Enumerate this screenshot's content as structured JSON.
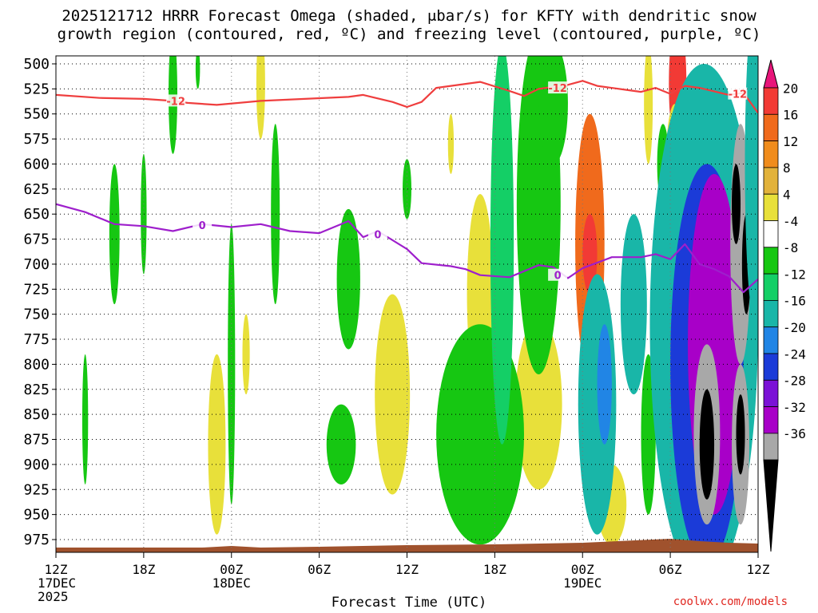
{
  "title_line1": "2025121712 HRRR Forecast Omega (shaded, μbar/s) for KFTY with dendritic snow",
  "title_line2": "growth region (contoured, red, ºC) and freezing level (contoured, purple, ºC)",
  "credit": "coolwx.com/models",
  "chart_data": {
    "type": "heatmap",
    "title": "2025121712 HRRR Forecast Omega (shaded, μbar/s) for KFTY with dendritic snow growth region (contoured, red, ºC) and freezing level (contoured, purple, ºC)",
    "xlabel": "Forecast Time (UTC)",
    "ylabel": "",
    "x_range_hours": [
      0,
      48
    ],
    "y_range_mb": [
      500,
      990
    ],
    "y_ticks": [
      "500",
      "525",
      "550",
      "575",
      "600",
      "625",
      "650",
      "675",
      "700",
      "725",
      "750",
      "775",
      "800",
      "825",
      "850",
      "875",
      "900",
      "925",
      "950",
      "975"
    ],
    "x_ticks": [
      {
        "h": 0,
        "label": "12Z",
        "sub": [
          "17DEC",
          "2025"
        ]
      },
      {
        "h": 6,
        "label": "18Z",
        "sub": []
      },
      {
        "h": 12,
        "label": "00Z",
        "sub": [
          "18DEC"
        ]
      },
      {
        "h": 18,
        "label": "06Z",
        "sub": []
      },
      {
        "h": 24,
        "label": "12Z",
        "sub": []
      },
      {
        "h": 30,
        "label": "18Z",
        "sub": []
      },
      {
        "h": 36,
        "label": "00Z",
        "sub": [
          "19DEC"
        ]
      },
      {
        "h": 42,
        "label": "06Z",
        "sub": []
      },
      {
        "h": 48,
        "label": "12Z",
        "sub": []
      }
    ],
    "colorbar": {
      "labels": [
        "20",
        "16",
        "12",
        "8",
        "4",
        "-4",
        "-8",
        "-12",
        "-16",
        "-20",
        "-24",
        "-28",
        "-32",
        "-36"
      ],
      "colors": [
        "#e8157a",
        "#f23a35",
        "#f06a1c",
        "#f08c1c",
        "#e2b23b",
        "#e8e03a",
        "#ffffff",
        "#16c712",
        "#14cf66",
        "#19b6a8",
        "#2185e5",
        "#1b3bd8",
        "#7b12d6",
        "#a800c8",
        "#a8a8a8",
        "#000000"
      ]
    },
    "omega_cells": [
      {
        "t": 8.0,
        "p": 530,
        "dt": 0.3,
        "dp": 60,
        "v": -6
      },
      {
        "t": 9.7,
        "p": 505,
        "dt": 0.15,
        "dp": 20,
        "v": -6
      },
      {
        "t": 4.0,
        "p": 670,
        "dt": 0.35,
        "dp": 70,
        "v": -6
      },
      {
        "t": 6.0,
        "p": 650,
        "dt": 0.2,
        "dp": 60,
        "v": -6
      },
      {
        "t": 12.0,
        "p": 800,
        "dt": 0.25,
        "dp": 140,
        "v": -6
      },
      {
        "t": 15.0,
        "p": 650,
        "dt": 0.3,
        "dp": 90,
        "v": -6
      },
      {
        "t": 2.0,
        "p": 855,
        "dt": 0.2,
        "dp": 65,
        "v": -6
      },
      {
        "t": 20.0,
        "p": 715,
        "dt": 0.8,
        "dp": 70,
        "v": -6
      },
      {
        "t": 19.5,
        "p": 880,
        "dt": 1.0,
        "dp": 40,
        "v": -6
      },
      {
        "t": 24.0,
        "p": 625,
        "dt": 0.3,
        "dp": 30,
        "v": -6
      },
      {
        "t": 14.0,
        "p": 520,
        "dt": 0.3,
        "dp": 55,
        "v": 5
      },
      {
        "t": 11.0,
        "p": 880,
        "dt": 0.6,
        "dp": 90,
        "v": 5
      },
      {
        "t": 13.0,
        "p": 790,
        "dt": 0.25,
        "dp": 40,
        "v": 5
      },
      {
        "t": 23.0,
        "p": 830,
        "dt": 1.2,
        "dp": 100,
        "v": 6
      },
      {
        "t": 29.0,
        "p": 730,
        "dt": 0.9,
        "dp": 100,
        "v": 5
      },
      {
        "t": 27.0,
        "p": 580,
        "dt": 0.2,
        "dp": 30,
        "v": 5
      },
      {
        "t": 33.0,
        "p": 840,
        "dt": 1.6,
        "dp": 85,
        "v": 6
      },
      {
        "t": 38.0,
        "p": 940,
        "dt": 1.0,
        "dp": 40,
        "v": 6
      },
      {
        "t": 36.5,
        "p": 680,
        "dt": 1.0,
        "dp": 130,
        "v": 14
      },
      {
        "t": 36.5,
        "p": 690,
        "dt": 0.5,
        "dp": 40,
        "v": 17
      },
      {
        "t": 42.5,
        "p": 520,
        "dt": 0.6,
        "dp": 65,
        "v": 18
      },
      {
        "t": 40.5,
        "p": 540,
        "dt": 0.3,
        "dp": 60,
        "v": 5
      },
      {
        "t": 42.3,
        "p": 600,
        "dt": 0.6,
        "dp": 60,
        "v": 5
      },
      {
        "t": 29.0,
        "p": 870,
        "dt": 3.0,
        "dp": 110,
        "v": -7
      },
      {
        "t": 30.5,
        "p": 680,
        "dt": 0.8,
        "dp": 200,
        "v": -8
      },
      {
        "t": 33.0,
        "p": 640,
        "dt": 1.5,
        "dp": 170,
        "v": -7
      },
      {
        "t": 34.0,
        "p": 540,
        "dt": 1.0,
        "dp": 60,
        "v": -7
      },
      {
        "t": 37.0,
        "p": 840,
        "dt": 1.3,
        "dp": 130,
        "v": -13
      },
      {
        "t": 37.5,
        "p": 820,
        "dt": 0.5,
        "dp": 60,
        "v": -19
      },
      {
        "t": 39.5,
        "p": 740,
        "dt": 0.9,
        "dp": 90,
        "v": -14
      },
      {
        "t": 40.5,
        "p": 870,
        "dt": 0.5,
        "dp": 80,
        "v": -7
      },
      {
        "t": 41.5,
        "p": 600,
        "dt": 0.4,
        "dp": 40,
        "v": -7
      },
      {
        "t": 44.3,
        "p": 760,
        "dt": 3.7,
        "dp": 260,
        "v": -14
      },
      {
        "t": 44.5,
        "p": 800,
        "dt": 2.5,
        "dp": 200,
        "v": -22
      },
      {
        "t": 45.0,
        "p": 780,
        "dt": 1.8,
        "dp": 170,
        "v": -29
      },
      {
        "t": 44.5,
        "p": 870,
        "dt": 0.9,
        "dp": 90,
        "v": -34
      },
      {
        "t": 44.5,
        "p": 880,
        "dt": 0.5,
        "dp": 55,
        "v": -40
      },
      {
        "t": 46.8,
        "p": 680,
        "dt": 0.7,
        "dp": 120,
        "v": -33
      },
      {
        "t": 46.5,
        "p": 640,
        "dt": 0.3,
        "dp": 40,
        "v": -40
      },
      {
        "t": 47.2,
        "p": 700,
        "dt": 0.3,
        "dp": 50,
        "v": -40
      },
      {
        "t": 46.8,
        "p": 880,
        "dt": 0.6,
        "dp": 80,
        "v": -33
      },
      {
        "t": 46.8,
        "p": 870,
        "dt": 0.3,
        "dp": 40,
        "v": -40
      },
      {
        "t": 47.7,
        "p": 600,
        "dt": 0.6,
        "dp": 150,
        "v": -14
      }
    ],
    "dgz_line": {
      "label": "-12",
      "color": "#ef3e3e",
      "points": [
        [
          0,
          531
        ],
        [
          3,
          534
        ],
        [
          6,
          535
        ],
        [
          8,
          537
        ],
        [
          9,
          539
        ],
        [
          11,
          541
        ],
        [
          14,
          537
        ],
        [
          17,
          535
        ],
        [
          20,
          533
        ],
        [
          21,
          531
        ],
        [
          23,
          538
        ],
        [
          24,
          543
        ],
        [
          25,
          538
        ],
        [
          26,
          524
        ],
        [
          27,
          522
        ],
        [
          29,
          518
        ],
        [
          31,
          527
        ],
        [
          32,
          532
        ],
        [
          33,
          525
        ],
        [
          35,
          521
        ],
        [
          36,
          517
        ],
        [
          37,
          522
        ],
        [
          39,
          526
        ],
        [
          40,
          528
        ],
        [
          41,
          524
        ],
        [
          42,
          530
        ],
        [
          43,
          522
        ],
        [
          44,
          524
        ],
        [
          46,
          531
        ],
        [
          47,
          529
        ],
        [
          48,
          549
        ]
      ],
      "label_positions": [
        [
          8.2,
          537
        ],
        [
          34.3,
          524
        ],
        [
          46.6,
          530
        ]
      ]
    },
    "freezing_line": {
      "label": "0",
      "color": "#9e1fcc",
      "points": [
        [
          0,
          640
        ],
        [
          2,
          648
        ],
        [
          4,
          660
        ],
        [
          6,
          662
        ],
        [
          8,
          667
        ],
        [
          10,
          660
        ],
        [
          12,
          663
        ],
        [
          14,
          660
        ],
        [
          16,
          667
        ],
        [
          18,
          669
        ],
        [
          20,
          657
        ],
        [
          21,
          673
        ],
        [
          22,
          667
        ],
        [
          24,
          685
        ],
        [
          25,
          699
        ],
        [
          27,
          702
        ],
        [
          28,
          705
        ],
        [
          29,
          711
        ],
        [
          31,
          713
        ],
        [
          33,
          701
        ],
        [
          34,
          703
        ],
        [
          35,
          714
        ],
        [
          36,
          704
        ],
        [
          38,
          693
        ],
        [
          40,
          693
        ],
        [
          41,
          690
        ],
        [
          42,
          695
        ],
        [
          43,
          680
        ],
        [
          44,
          700
        ],
        [
          45,
          705
        ],
        [
          46,
          712
        ],
        [
          47,
          728
        ],
        [
          48,
          715
        ]
      ],
      "label_positions": [
        [
          10.0,
          661
        ],
        [
          22.0,
          670
        ],
        [
          34.3,
          711
        ]
      ]
    }
  }
}
